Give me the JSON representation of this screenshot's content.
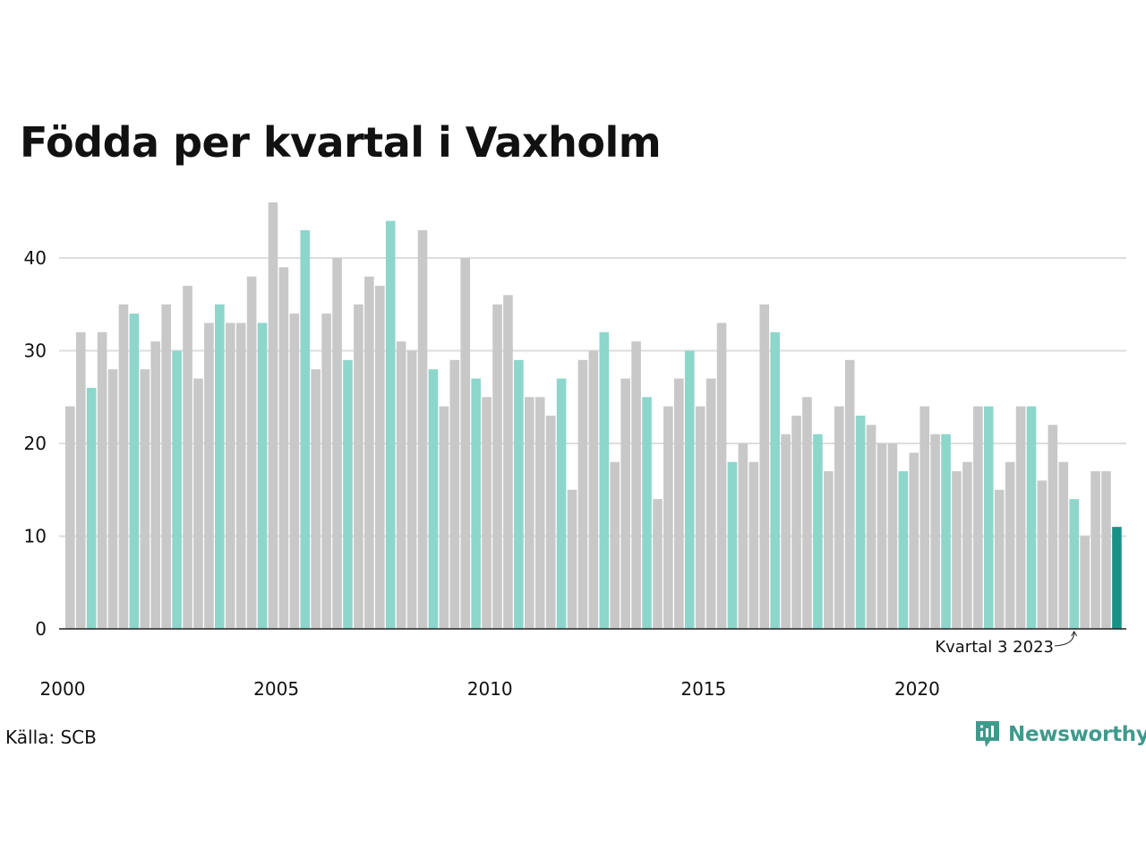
{
  "title": "Födda per kvartal i Vaxholm",
  "source": "Källa: SCB",
  "brand": {
    "name": "Newsworthy",
    "icon": "newsworthy-logo-icon",
    "color": "#3f9a8c"
  },
  "colors": {
    "other_quarter": "#c8c8c8",
    "quarter_highlight": "#8dd6cb",
    "latest": "#1a9187",
    "grid": "#dddddd",
    "axis": "#222222"
  },
  "chart_data": {
    "type": "bar",
    "title": "Födda per kvartal i Vaxholm",
    "xlabel": "",
    "ylabel": "",
    "ylim": [
      0,
      46
    ],
    "yticks": [
      0,
      10,
      20,
      30,
      40
    ],
    "x_tick_labels": [
      "2000",
      "2005",
      "2010",
      "2015",
      "2020"
    ],
    "grid": true,
    "highlight": "quarter 3 of each year; latest quarter in dark teal",
    "annotation": "Kvartal 3 2023",
    "annotation_target": "2023 Q3",
    "series": [
      {
        "values": [
          24,
          32,
          26,
          32,
          28,
          35,
          34,
          28,
          31,
          35,
          30,
          37,
          27,
          33,
          35,
          33,
          33,
          38,
          33,
          46,
          39,
          34,
          43,
          28,
          34,
          40,
          29,
          35,
          38,
          37,
          44,
          31,
          30,
          43,
          28,
          24,
          29,
          40,
          27,
          25,
          35,
          36,
          29,
          25,
          25,
          23,
          27,
          15,
          29,
          30,
          32,
          18,
          27,
          31,
          25,
          14,
          24,
          27,
          30,
          24,
          27,
          33,
          18,
          20,
          18,
          35,
          32,
          21,
          23,
          25,
          21,
          17,
          24,
          29,
          23,
          22,
          20,
          20,
          17,
          19,
          24,
          21,
          21,
          17,
          18,
          24,
          24,
          15,
          18,
          24,
          24,
          16,
          22,
          18,
          14,
          10,
          17,
          17,
          11
        ]
      }
    ]
  }
}
